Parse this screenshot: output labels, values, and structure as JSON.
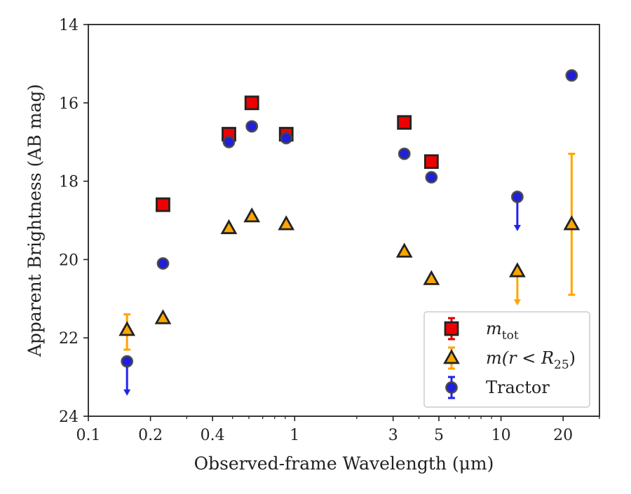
{
  "chart_data": {
    "type": "scatter",
    "title": "",
    "xlabel": "Observed-frame Wavelength (μm)",
    "ylabel": "Apparent Brightness (AB mag)",
    "xscale": "log",
    "xlim": [
      0.1,
      30
    ],
    "ylim": [
      24,
      14
    ],
    "y_inverted": true,
    "grid": false,
    "x_ticks": [
      {
        "value": 0.1,
        "label": "0.1"
      },
      {
        "value": 0.2,
        "label": "0.2"
      },
      {
        "value": 0.4,
        "label": "0.4"
      },
      {
        "value": 1,
        "label": "1"
      },
      {
        "value": 3,
        "label": "3"
      },
      {
        "value": 5,
        "label": "5"
      },
      {
        "value": 10,
        "label": "10"
      },
      {
        "value": 20,
        "label": "20"
      }
    ],
    "y_ticks": [
      {
        "value": 14,
        "label": "14"
      },
      {
        "value": 16,
        "label": "16"
      },
      {
        "value": 18,
        "label": "18"
      },
      {
        "value": 20,
        "label": "20"
      },
      {
        "value": 22,
        "label": "22"
      },
      {
        "value": 24,
        "label": "24"
      }
    ],
    "legend": {
      "placement": "lower-right",
      "entries": [
        {
          "series": "m_tot",
          "pre": "m",
          "sub": "tot",
          "post": ""
        },
        {
          "series": "m_r25",
          "pre": "m(r < R",
          "sub": "25",
          "post": ")"
        },
        {
          "series": "tractor",
          "pre": "Tractor",
          "sub": "",
          "post": ""
        }
      ]
    },
    "series": [
      {
        "key": "m_tot",
        "marker": "square",
        "fill": "#ee0000",
        "edge": "#222222",
        "errcolor": "#dd0000",
        "points": [
          {
            "x": 0.23,
            "y": 18.6
          },
          {
            "x": 0.48,
            "y": 16.8
          },
          {
            "x": 0.62,
            "y": 16.0
          },
          {
            "x": 0.91,
            "y": 16.8
          },
          {
            "x": 3.4,
            "y": 16.5
          },
          {
            "x": 4.6,
            "y": 17.5
          }
        ]
      },
      {
        "key": "m_r25",
        "marker": "triangle",
        "fill": "#ffa500",
        "edge": "#222222",
        "errcolor": "#ffa500",
        "points": [
          {
            "x": 0.154,
            "y": 21.8,
            "yerr": [
              21.4,
              22.3
            ]
          },
          {
            "x": 0.23,
            "y": 21.5
          },
          {
            "x": 0.48,
            "y": 19.2
          },
          {
            "x": 0.62,
            "y": 18.9
          },
          {
            "x": 0.91,
            "y": 19.1
          },
          {
            "x": 3.4,
            "y": 19.8
          },
          {
            "x": 4.6,
            "y": 20.5
          },
          {
            "x": 12,
            "y": 20.3,
            "upper_limit": true
          },
          {
            "x": 22,
            "y": 19.1,
            "yerr": [
              17.3,
              20.9
            ]
          }
        ]
      },
      {
        "key": "tractor",
        "marker": "circle",
        "fill": "#1f1fdd",
        "edge": "#444444",
        "errcolor": "#2222ee",
        "points": [
          {
            "x": 0.154,
            "y": 22.6,
            "upper_limit": true
          },
          {
            "x": 0.23,
            "y": 20.1
          },
          {
            "x": 0.48,
            "y": 17.0
          },
          {
            "x": 0.62,
            "y": 16.6
          },
          {
            "x": 0.91,
            "y": 16.9
          },
          {
            "x": 3.4,
            "y": 17.3
          },
          {
            "x": 4.6,
            "y": 17.9
          },
          {
            "x": 12,
            "y": 18.4,
            "upper_limit": true
          },
          {
            "x": 22,
            "y": 15.3
          }
        ]
      }
    ]
  }
}
